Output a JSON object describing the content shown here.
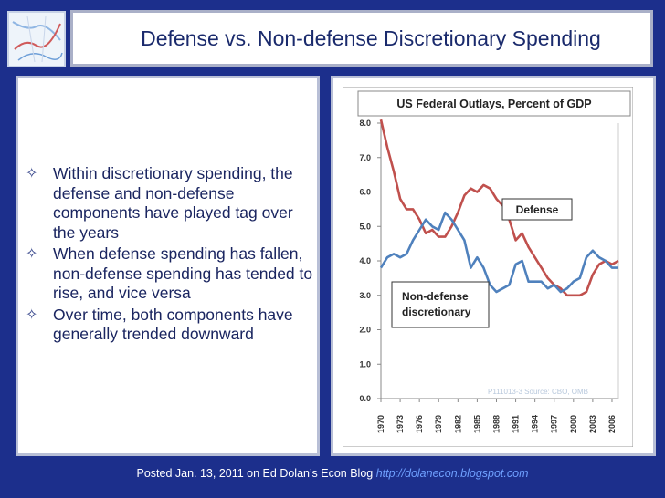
{
  "slide": {
    "title": "Defense vs. Non-defense Discretionary Spending",
    "bullets": [
      "Within discretionary spending, the defense and non-defense components have played tag over the years",
      "When defense spending has fallen, non-defense spending has tended to rise, and vice versa",
      "Over time, both components have generally trended downward"
    ],
    "footer_text": "Posted Jan. 13, 2011 on Ed Dolan’s Econ Blog",
    "footer_link": "http://dolanecon.blogspot.com"
  },
  "chart_data": {
    "type": "line",
    "title": "US Federal Outlays, Percent of GDP",
    "source_note": "P111013-3 Source: CBO, OMB",
    "ylim": [
      0,
      8.0
    ],
    "yticks": [
      "0.0",
      "1.0",
      "2.0",
      "3.0",
      "4.0",
      "5.0",
      "6.0",
      "7.0",
      "8.0"
    ],
    "xtick_labels": [
      "1970",
      "1973",
      "1976",
      "1979",
      "1982",
      "1985",
      "1988",
      "1991",
      "1994",
      "1997",
      "2000",
      "2003",
      "2006"
    ],
    "x": [
      1970,
      1971,
      1972,
      1973,
      1974,
      1975,
      1976,
      1977,
      1978,
      1979,
      1980,
      1981,
      1982,
      1983,
      1984,
      1985,
      1986,
      1987,
      1988,
      1989,
      1990,
      1991,
      1992,
      1993,
      1994,
      1995,
      1996,
      1997,
      1998,
      1999,
      2000,
      2001,
      2002,
      2003,
      2004,
      2005,
      2006,
      2007
    ],
    "series": [
      {
        "name": "Defense",
        "color": "#c0504d",
        "values": [
          8.1,
          7.3,
          6.6,
          5.8,
          5.5,
          5.5,
          5.2,
          4.8,
          4.9,
          4.7,
          4.7,
          5.0,
          5.4,
          5.9,
          6.1,
          6.0,
          6.2,
          6.1,
          5.8,
          5.6,
          5.2,
          4.6,
          4.8,
          4.4,
          4.1,
          3.8,
          3.5,
          3.3,
          3.2,
          3.0,
          3.0,
          3.0,
          3.1,
          3.6,
          3.9,
          4.0,
          3.9,
          4.0
        ]
      },
      {
        "name": "Non-defense discretionary",
        "color": "#4f81bd",
        "values": [
          3.8,
          4.1,
          4.2,
          4.1,
          4.2,
          4.6,
          4.9,
          5.2,
          5.0,
          4.9,
          5.4,
          5.2,
          4.9,
          4.6,
          3.8,
          4.1,
          3.8,
          3.3,
          3.1,
          3.2,
          3.3,
          3.9,
          4.0,
          3.4,
          3.4,
          3.4,
          3.2,
          3.3,
          3.1,
          3.2,
          3.4,
          3.5,
          4.1,
          4.3,
          4.1,
          4.0,
          3.8,
          3.8
        ]
      }
    ],
    "legend_labels": [
      "Defense",
      "Non-defense discretionary"
    ]
  }
}
